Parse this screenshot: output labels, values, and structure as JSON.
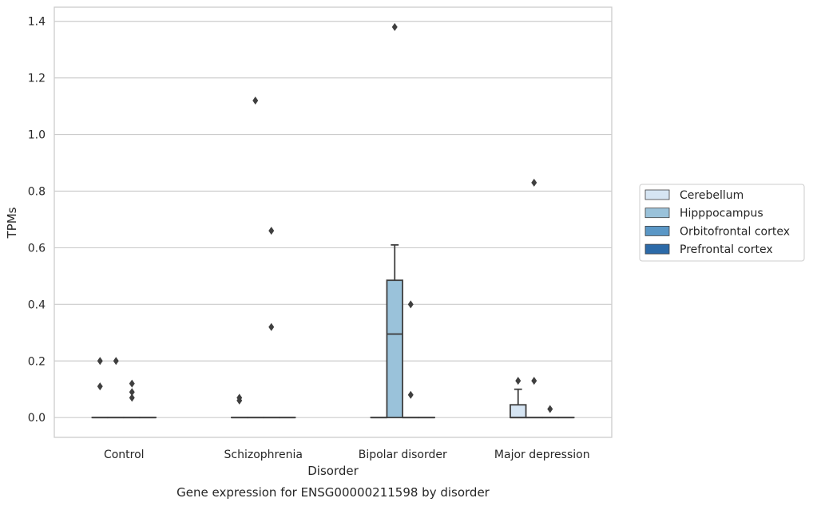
{
  "chart_data": {
    "type": "box",
    "title": "",
    "caption": "Gene expression for ENSG00000211598 by disorder",
    "xlabel": "Disorder",
    "ylabel": "TPMs",
    "ylim": [
      -0.07,
      1.45
    ],
    "yticks": [
      0.0,
      0.2,
      0.4,
      0.6,
      0.8,
      1.0,
      1.2,
      1.4
    ],
    "ytick_labels": [
      "0.0",
      "0.2",
      "0.4",
      "0.6",
      "0.8",
      "1.0",
      "1.2",
      "1.4"
    ],
    "grid": "horizontal",
    "legend_position": "right",
    "categories": [
      "Control",
      "Schizophrenia",
      "Bipolar disorder",
      "Major depression"
    ],
    "series": [
      {
        "name": "Cerebellum",
        "color": "#d6e5f3",
        "boxes": [
          {
            "q1": 0,
            "median": 0,
            "q3": 0,
            "whislo": 0,
            "whishi": 0,
            "fliers": [
              0.2,
              0.11
            ]
          },
          {
            "q1": 0,
            "median": 0,
            "q3": 0,
            "whislo": 0,
            "whishi": 0,
            "fliers": [
              0.07,
              0.06
            ]
          },
          {
            "q1": 0,
            "median": 0,
            "q3": 0,
            "whislo": 0,
            "whishi": 0,
            "fliers": []
          },
          {
            "q1": 0,
            "median": 0,
            "q3": 0.045,
            "whislo": 0,
            "whishi": 0.1,
            "fliers": [
              0.13
            ]
          }
        ]
      },
      {
        "name": "Hipppocampus",
        "color": "#9ac2da",
        "boxes": [
          {
            "q1": 0,
            "median": 0,
            "q3": 0,
            "whislo": 0,
            "whishi": 0,
            "fliers": [
              0.2
            ]
          },
          {
            "q1": 0,
            "median": 0,
            "q3": 0,
            "whislo": 0,
            "whishi": 0,
            "fliers": [
              1.12
            ]
          },
          {
            "q1": 0,
            "median": 0.295,
            "q3": 0.485,
            "whislo": 0,
            "whishi": 0.61,
            "fliers": [
              1.38
            ]
          },
          {
            "q1": 0,
            "median": 0,
            "q3": 0,
            "whislo": 0,
            "whishi": 0,
            "fliers": [
              0.83,
              0.13
            ]
          }
        ]
      },
      {
        "name": "Orbitofrontal cortex",
        "color": "#5a97c6",
        "boxes": [
          {
            "q1": 0,
            "median": 0,
            "q3": 0,
            "whislo": 0,
            "whishi": 0,
            "fliers": [
              0.12,
              0.09,
              0.07
            ]
          },
          {
            "q1": 0,
            "median": 0,
            "q3": 0,
            "whislo": 0,
            "whishi": 0,
            "fliers": [
              0.66,
              0.32
            ]
          },
          {
            "q1": 0,
            "median": 0,
            "q3": 0,
            "whislo": 0,
            "whishi": 0,
            "fliers": [
              0.4,
              0.08
            ]
          },
          {
            "q1": 0,
            "median": 0,
            "q3": 0,
            "whislo": 0,
            "whishi": 0,
            "fliers": [
              0.03
            ]
          }
        ]
      },
      {
        "name": "Prefrontal cortex",
        "color": "#2c6aa8",
        "boxes": [
          {
            "q1": 0,
            "median": 0,
            "q3": 0,
            "whislo": 0,
            "whishi": 0,
            "fliers": []
          },
          {
            "q1": 0,
            "median": 0,
            "q3": 0,
            "whislo": 0,
            "whishi": 0,
            "fliers": []
          },
          {
            "q1": 0,
            "median": 0,
            "q3": 0,
            "whislo": 0,
            "whishi": 0,
            "fliers": []
          },
          {
            "q1": 0,
            "median": 0,
            "q3": 0,
            "whislo": 0,
            "whishi": 0,
            "fliers": []
          }
        ]
      }
    ]
  }
}
